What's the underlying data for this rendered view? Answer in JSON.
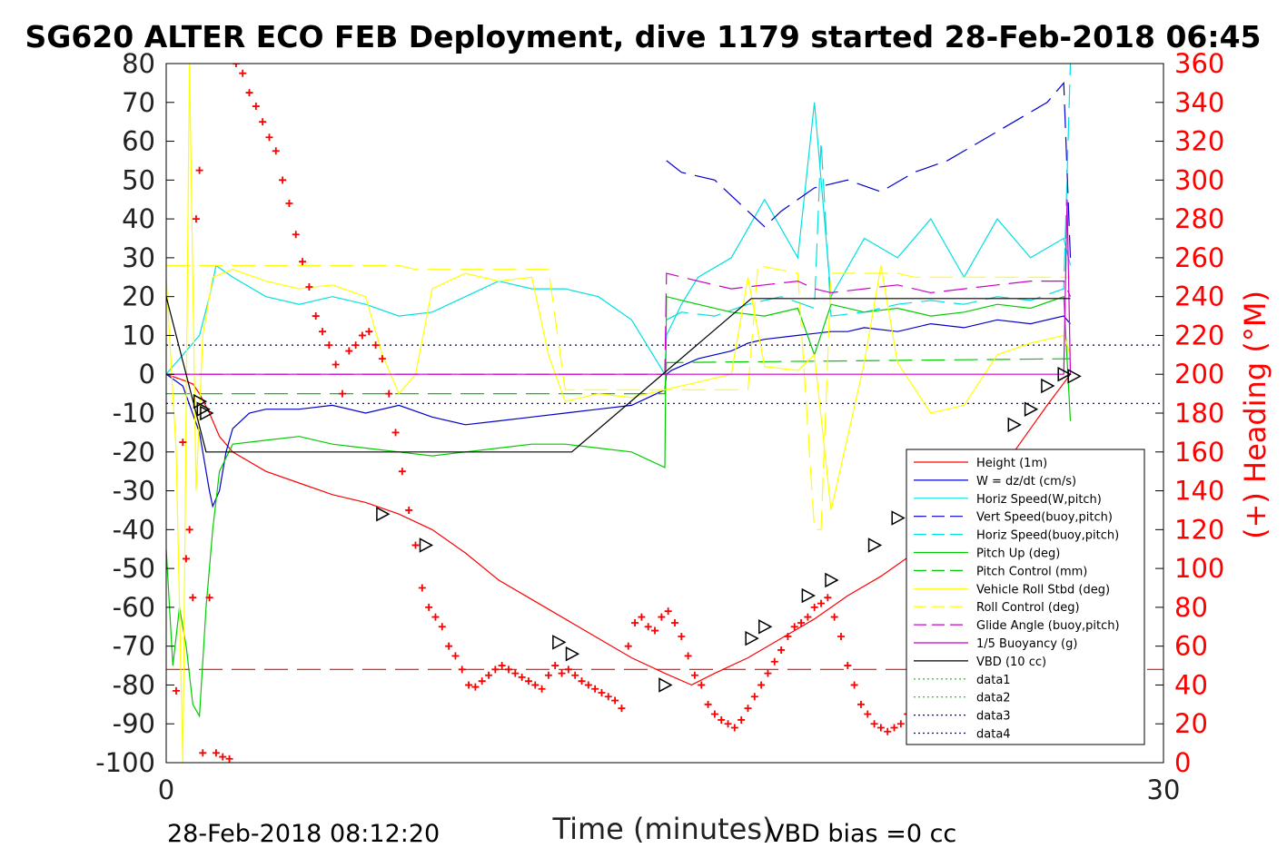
{
  "chart_data": {
    "type": "line",
    "title": "SG620 ALTER ECO FEB Deployment, dive 1179 started 28-Feb-2018 06:45",
    "xlabel": "Time (minutes)",
    "ylabel": "",
    "ylabel_right": "(+) Heading (°M)",
    "xlim": [
      0,
      30
    ],
    "ylim": [
      -100,
      80
    ],
    "ylim_right": [
      0,
      360
    ],
    "xticks": [
      "0",
      "30"
    ],
    "yticks": [
      "80",
      "70",
      "60",
      "50",
      "40",
      "30",
      "20",
      "10",
      "0",
      "-10",
      "-20",
      "-30",
      "-40",
      "-50",
      "-60",
      "-70",
      "-80",
      "-90",
      "-100"
    ],
    "yticks_right": [
      "360",
      "340",
      "320",
      "300",
      "280",
      "260",
      "240",
      "220",
      "200",
      "180",
      "160",
      "140",
      "120",
      "100",
      "80",
      "60",
      "40",
      "20",
      "0"
    ],
    "footer_left": "28-Feb-2018 08:12:20",
    "footer_right": "VBD bias =0 cc",
    "legend_position": "lower-right",
    "legend": [
      {
        "label": "Height (1m)",
        "color": "#ff0000",
        "dash": "solid"
      },
      {
        "label": "W = dz/dt (cm/s)",
        "color": "#0000cc",
        "dash": "solid"
      },
      {
        "label": "Horiz Speed(W,pitch)",
        "color": "#00e0e0",
        "dash": "solid"
      },
      {
        "label": "Vert Speed(buoy,pitch)",
        "color": "#0000cc",
        "dash": "dashed"
      },
      {
        "label": "Horiz Speed(buoy,pitch)",
        "color": "#00e0e0",
        "dash": "dashed"
      },
      {
        "label": "Pitch Up (deg)",
        "color": "#00cc00",
        "dash": "solid"
      },
      {
        "label": "Pitch Control (mm)",
        "color": "#00cc00",
        "dash": "dashed"
      },
      {
        "label": "Vehicle Roll Stbd (deg)",
        "color": "#ffff00",
        "dash": "solid"
      },
      {
        "label": "Roll Control (deg)",
        "color": "#ffff00",
        "dash": "dashed"
      },
      {
        "label": "Glide Angle (buoy,pitch)",
        "color": "#cc00cc",
        "dash": "dashed"
      },
      {
        "label": "1/5 Buoyancy (g)",
        "color": "#cc00cc",
        "dash": "solid"
      },
      {
        "label": "VBD (10 cc)",
        "color": "#000000",
        "dash": "solid"
      },
      {
        "label": "data1",
        "color": "#00cc00",
        "dash": "dotted"
      },
      {
        "label": "data2",
        "color": "#00cc00",
        "dash": "dotted"
      },
      {
        "label": "data3",
        "color": "#0000cc",
        "dash": "dotted"
      },
      {
        "label": "data4",
        "color": "#0000cc",
        "dash": "dotted"
      }
    ],
    "reference_lines": [
      {
        "y": 7.5,
        "color": "#000033",
        "dash": "dotted"
      },
      {
        "y": -7.5,
        "color": "#000033",
        "dash": "dotted"
      },
      {
        "y": -76,
        "color": "#ff0000",
        "dash": "dashed"
      }
    ],
    "series": [
      {
        "key": "height",
        "color": "#ff0000",
        "dash": "solid",
        "x": [
          0,
          0.5,
          0.8,
          1.0,
          1.3,
          1.6,
          2,
          3,
          4,
          5,
          6,
          7,
          8,
          9,
          10,
          11,
          12,
          13,
          14,
          15,
          15.8,
          16.5,
          17.5,
          18.5,
          19.5,
          20.5,
          21.5,
          22.5,
          23.5,
          24.5,
          25.5,
          26.5,
          27.2
        ],
        "y": [
          0,
          -1.5,
          -2.5,
          -5,
          -10,
          -16,
          -20,
          -25,
          -28,
          -31,
          -33,
          -36,
          -40,
          -46,
          -53,
          -58,
          -63,
          -68,
          -73,
          -77,
          -80,
          -77,
          -73,
          -68,
          -63,
          -57,
          -52,
          -46,
          -40,
          -33,
          -20,
          -8,
          0
        ]
      },
      {
        "key": "w",
        "color": "#0000cc",
        "dash": "solid",
        "x": [
          0,
          0.5,
          1.0,
          1.3,
          1.4,
          1.6,
          1.8,
          2,
          2.5,
          3,
          4,
          5,
          6,
          7,
          8,
          9,
          10,
          11,
          12,
          13,
          14,
          15,
          15.05,
          15.2,
          16,
          17,
          17.5,
          18,
          19,
          20,
          20.5,
          21,
          22,
          23,
          24,
          25,
          26,
          27,
          27.2
        ],
        "y": [
          0,
          -3,
          -15,
          -30,
          -34,
          -30,
          -20,
          -14,
          -10,
          -9,
          -9,
          -8,
          -10,
          -8,
          -11,
          -13,
          -12,
          -11,
          -10,
          -9,
          -8,
          -4,
          0,
          1,
          4,
          6,
          8,
          9,
          10,
          11,
          11,
          12,
          11,
          13,
          12,
          14,
          13,
          15,
          13
        ]
      },
      {
        "key": "horiz_speed_w",
        "color": "#00e0e0",
        "dash": "solid",
        "x": [
          0,
          0.5,
          1.0,
          1.3,
          1.5,
          2,
          3,
          4,
          5,
          6,
          7,
          8,
          9,
          10,
          11,
          12,
          13,
          14,
          15,
          15.05,
          15.5,
          16,
          17,
          18,
          19,
          19.5,
          20,
          21,
          22,
          23,
          24,
          25,
          26,
          27,
          27.2
        ],
        "y": [
          0,
          5,
          10,
          20,
          28,
          25,
          20,
          18,
          20,
          18,
          15,
          16,
          20,
          24,
          22,
          22,
          20,
          14,
          0,
          10,
          18,
          25,
          30,
          45,
          30,
          70,
          20,
          35,
          30,
          40,
          25,
          40,
          30,
          35,
          28
        ]
      },
      {
        "key": "vert_speed_buoy",
        "color": "#0000cc",
        "dash": "dashed",
        "x": [
          15.05,
          15.5,
          16.5,
          17.5,
          18,
          18.5,
          19.5,
          20.5,
          21.5,
          22.5,
          23.5,
          24.5,
          25.5,
          26.5,
          27,
          27.2
        ],
        "y": [
          55,
          52,
          50,
          42,
          38,
          42,
          48,
          50,
          47,
          52,
          55,
          60,
          65,
          70,
          75,
          30
        ]
      },
      {
        "key": "horiz_speed_buoy",
        "color": "#00e0e0",
        "dash": "dashed",
        "x": [
          15.05,
          15.5,
          16.5,
          17.5,
          18.5,
          19.5,
          19.7,
          20,
          21,
          22,
          23,
          24,
          25,
          26,
          27,
          27.2
        ],
        "y": [
          14,
          16,
          15,
          18,
          20,
          17,
          60,
          15,
          16,
          18,
          19,
          18,
          20,
          19,
          22,
          80
        ]
      },
      {
        "key": "pitch_up",
        "color": "#00cc00",
        "dash": "solid",
        "x": [
          0,
          0.2,
          0.4,
          0.6,
          0.8,
          1.0,
          1.2,
          1.4,
          1.6,
          2,
          3,
          4,
          5,
          6,
          7,
          8,
          9,
          10,
          11,
          12,
          13,
          14,
          15,
          15.05,
          16,
          17,
          18,
          19,
          19.5,
          20,
          21,
          22,
          23,
          24,
          25,
          26,
          27,
          27.2
        ],
        "y": [
          -45,
          -75,
          -60,
          -70,
          -85,
          -88,
          -60,
          -40,
          -25,
          -18,
          -17,
          -16,
          -18,
          -19,
          -20,
          -21,
          -20,
          -19,
          -18,
          -18,
          -19,
          -20,
          -24,
          20,
          18,
          16,
          15,
          17,
          5,
          18,
          16,
          17,
          15,
          16,
          18,
          17,
          20,
          -12
        ]
      },
      {
        "key": "pitch_control",
        "color": "#00cc00",
        "dash": "dashed",
        "x": [
          0,
          15.0,
          15.05,
          27.2
        ],
        "y": [
          -5,
          -5,
          3,
          4
        ]
      },
      {
        "key": "vehicle_roll",
        "color": "#ffff00",
        "dash": "solid",
        "x": [
          0,
          0.3,
          0.5,
          0.7,
          0.9,
          1.1,
          1.4,
          2,
          3,
          4,
          5,
          6,
          6.5,
          7,
          7.5,
          8,
          9,
          10,
          11,
          11.5,
          12,
          13,
          14,
          15,
          16,
          17,
          17.5,
          18,
          19,
          19.5,
          20,
          21,
          21.5,
          22,
          23,
          24,
          25,
          26,
          27,
          27.2
        ],
        "y": [
          25,
          -20,
          -100,
          80,
          -30,
          10,
          25,
          27,
          24,
          22,
          23,
          20,
          5,
          -5,
          0,
          22,
          26,
          24,
          25,
          5,
          -7,
          -5,
          -6,
          -4,
          -2,
          0,
          25,
          2,
          1,
          5,
          -35,
          3,
          28,
          3,
          -10,
          -8,
          5,
          8,
          10,
          5
        ]
      },
      {
        "key": "roll_control",
        "color": "#ffff00",
        "dash": "dashed",
        "x": [
          0,
          7,
          7.5,
          11.5,
          12,
          15,
          15.05,
          17.5,
          17.8,
          19,
          19.5,
          19.7,
          20,
          21,
          22,
          22.5,
          27.2
        ],
        "y": [
          28,
          28,
          27,
          27,
          -4,
          -4,
          -4,
          -4,
          28,
          26,
          -40,
          -40,
          26,
          26,
          26,
          25,
          25
        ]
      },
      {
        "key": "glide_angle",
        "color": "#cc00cc",
        "dash": "dashed",
        "x": [
          0,
          15.0,
          15.05,
          16,
          17,
          18,
          19,
          19.5,
          20,
          21,
          22,
          23,
          24,
          25,
          26,
          27,
          27.2
        ],
        "y": [
          0,
          0,
          26,
          24,
          22,
          23,
          24,
          22,
          21,
          22,
          23,
          21,
          22,
          23,
          24,
          24,
          20
        ]
      },
      {
        "key": "buoyancy",
        "color": "#cc00cc",
        "dash": "solid",
        "x": [
          0,
          27.0,
          27.1,
          27.2
        ],
        "y": [
          0,
          0,
          45,
          0
        ]
      },
      {
        "key": "vbd",
        "color": "#000000",
        "dash": "solid",
        "x": [
          0,
          1.2,
          12.2,
          17.6,
          27.2
        ],
        "y": [
          20,
          -20,
          -20,
          19.5,
          19.5
        ]
      }
    ],
    "heading_points": {
      "x": [
        0.3,
        0.5,
        0.6,
        0.7,
        0.8,
        0.9,
        1.0,
        1.1,
        1.3,
        1.5,
        1.7,
        1.9,
        2.1,
        2.3,
        2.5,
        2.7,
        2.9,
        3.1,
        3.3,
        3.5,
        3.7,
        3.9,
        4.1,
        4.3,
        4.5,
        4.7,
        4.9,
        5.1,
        5.3,
        5.5,
        5.7,
        5.9,
        6.1,
        6.3,
        6.5,
        6.7,
        6.9,
        7.1,
        7.3,
        7.5,
        7.7,
        7.9,
        8.1,
        8.3,
        8.5,
        8.7,
        8.9,
        9.1,
        9.3,
        9.5,
        9.7,
        9.9,
        10.1,
        10.3,
        10.5,
        10.7,
        10.9,
        11.1,
        11.3,
        11.5,
        11.7,
        11.9,
        12.1,
        12.3,
        12.5,
        12.7,
        12.9,
        13.1,
        13.3,
        13.5,
        13.7,
        13.9,
        14.1,
        14.3,
        14.5,
        14.7,
        14.9,
        15.1,
        15.3,
        15.5,
        15.7,
        15.9,
        16.1,
        16.3,
        16.5,
        16.7,
        16.9,
        17.1,
        17.3,
        17.5,
        17.7,
        17.9,
        18.1,
        18.3,
        18.5,
        18.7,
        18.9,
        19.1,
        19.3,
        19.5,
        19.7,
        19.9,
        20.1,
        20.3,
        20.5,
        20.7,
        20.9,
        21.1,
        21.3,
        21.5,
        21.7,
        21.9,
        22.1,
        22.3
      ],
      "y": [
        37,
        165,
        105,
        120,
        85,
        280,
        305,
        5,
        85,
        5,
        3,
        2,
        360,
        355,
        345,
        338,
        330,
        322,
        315,
        300,
        288,
        272,
        258,
        245,
        230,
        222,
        215,
        205,
        190,
        212,
        215,
        220,
        222,
        215,
        208,
        190,
        170,
        150,
        130,
        112,
        90,
        80,
        75,
        70,
        60,
        55,
        48,
        40,
        39,
        42,
        45,
        48,
        50,
        48,
        46,
        44,
        42,
        40,
        38,
        45,
        50,
        46,
        48,
        45,
        42,
        40,
        38,
        36,
        34,
        32,
        28,
        60,
        72,
        75,
        70,
        68,
        75,
        78,
        72,
        65,
        55,
        45,
        40,
        30,
        25,
        22,
        20,
        18,
        22,
        28,
        34,
        40,
        46,
        52,
        58,
        65,
        70,
        72,
        75,
        80,
        82,
        85,
        75,
        65,
        50,
        40,
        30,
        25,
        20,
        18,
        16,
        18,
        20,
        25
      ]
    },
    "markers": {
      "x": [
        1.0,
        1.1,
        1.2,
        6.5,
        7.8,
        11.8,
        12.2,
        15.0,
        17.6,
        18.0,
        19.3,
        20.0,
        21.3,
        22.0,
        25.5,
        26.0,
        26.5,
        27.0,
        27.3
      ],
      "y": [
        -7,
        -9,
        -10,
        -36,
        -44,
        -69,
        -72,
        -80,
        -68,
        -65,
        -57,
        -53,
        -44,
        -37,
        -13,
        -9,
        -3,
        0,
        -0.5
      ]
    }
  }
}
